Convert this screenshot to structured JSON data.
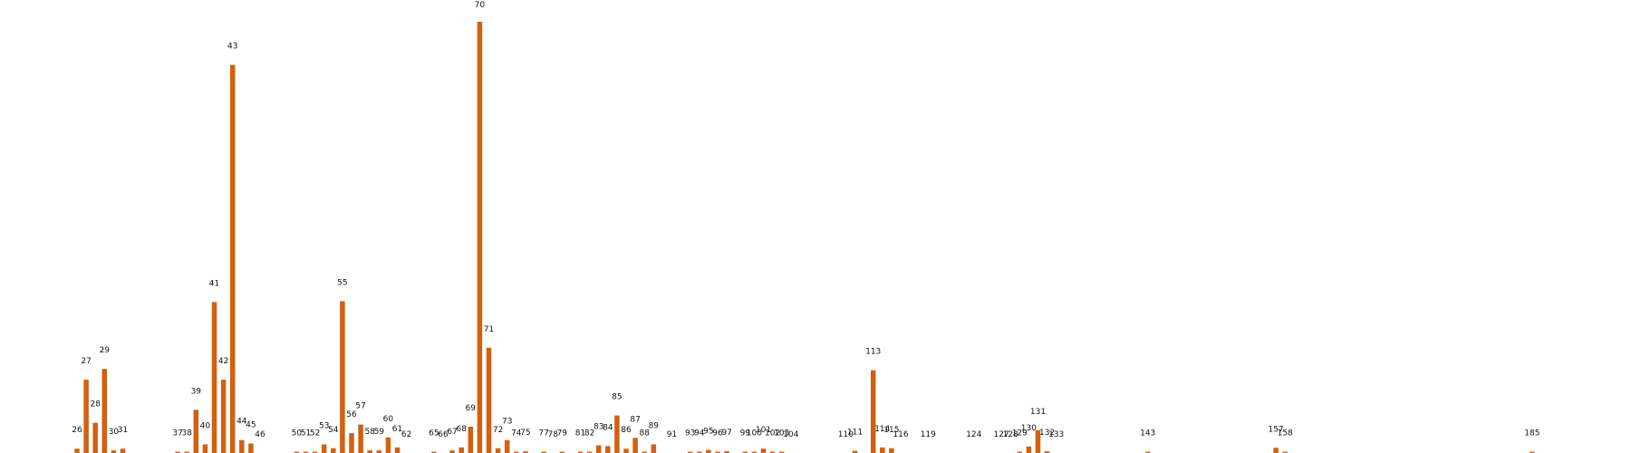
{
  "chart_data": {
    "type": "bar",
    "title": "",
    "xlabel": "",
    "ylabel": "",
    "grid": false,
    "color": "#d2600f",
    "x": [
      26,
      27,
      28,
      29,
      30,
      31,
      37,
      38,
      39,
      40,
      41,
      42,
      43,
      44,
      45,
      46,
      50,
      51,
      52,
      53,
      54,
      55,
      56,
      57,
      58,
      59,
      60,
      61,
      62,
      65,
      66,
      67,
      68,
      69,
      70,
      71,
      72,
      73,
      74,
      75,
      77,
      78,
      79,
      81,
      82,
      83,
      84,
      85,
      86,
      87,
      88,
      89,
      91,
      93,
      94,
      95,
      96,
      97,
      99,
      100,
      101,
      102,
      103,
      104,
      110,
      111,
      113,
      114,
      115,
      116,
      119,
      124,
      127,
      128,
      129,
      130,
      131,
      132,
      133,
      143,
      157,
      158,
      185
    ],
    "values": [
      1,
      17,
      7,
      19.5,
      0.6,
      1,
      0.3,
      0.3,
      10,
      2,
      35,
      17,
      90,
      3,
      2.2,
      0,
      0.3,
      0.3,
      0.3,
      2,
      1.1,
      35.2,
      4.6,
      6.6,
      0.6,
      0.6,
      3.6,
      1.3,
      0,
      0.3,
      0,
      0.6,
      1.3,
      6.1,
      100,
      24.4,
      1.1,
      3,
      0.3,
      0.4,
      0.3,
      0,
      0.3,
      0.3,
      0.3,
      1.8,
      1.6,
      8.7,
      1,
      3.5,
      0.3,
      2,
      0,
      0.3,
      0.3,
      0.7,
      0.3,
      0.4,
      0.3,
      0.3,
      1,
      0.3,
      0.3,
      0,
      0,
      0.5,
      19.2,
      1.3,
      1.1,
      0,
      0,
      0,
      0,
      0,
      0.3,
      1.5,
      5.3,
      0.4,
      0,
      0.3,
      1.2,
      0.3,
      0.3
    ],
    "ylim": [
      0,
      100
    ]
  }
}
